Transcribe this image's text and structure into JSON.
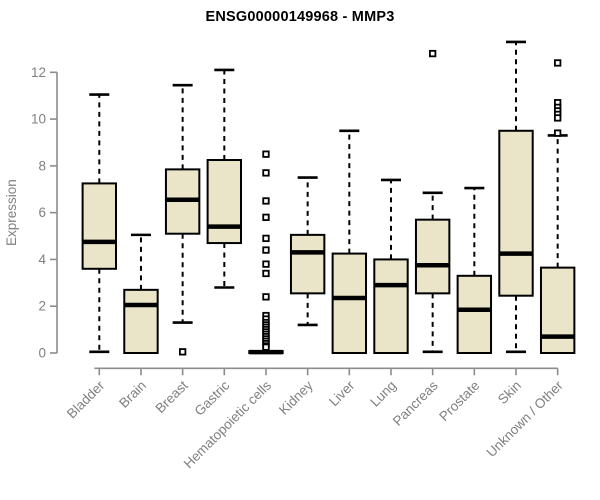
{
  "window": {
    "title": "ENSG00000149968 - MMP3"
  },
  "colors": {
    "background": "#FFFFFF",
    "box_fill": "#EAE5C9",
    "box_border": "#000000",
    "median": "#000000",
    "whisker": "#000000",
    "outlier_stroke": "#000000",
    "outlier_fill": "#FFFFFF",
    "axis": "#8C8C8C",
    "tick_label": "#808080",
    "title_text": "#000000"
  },
  "chart_data": {
    "type": "boxplot",
    "title": "ENSG00000149968 - MMP3",
    "xlabel": "",
    "ylabel": "Expression",
    "ylim": [
      0,
      13.5
    ],
    "yticks": [
      0,
      2,
      4,
      6,
      8,
      10,
      12
    ],
    "grid": false,
    "legend": false,
    "x_label_rotation_deg": 45,
    "categories": [
      "Bladder",
      "Brain",
      "Breast",
      "Gastric",
      "Hematopoietic cells",
      "Kidney",
      "Liver",
      "Lung",
      "Pancreas",
      "Prostate",
      "Skin",
      "Unknown / Other"
    ],
    "series": [
      {
        "name": "Bladder",
        "whisker_low": 0.05,
        "q1": 3.6,
        "median": 4.75,
        "q3": 7.25,
        "whisker_high": 11.05,
        "outliers": []
      },
      {
        "name": "Brain",
        "whisker_low": 0,
        "q1": 0,
        "median": 2.05,
        "q3": 2.7,
        "whisker_high": 5.05,
        "outliers": []
      },
      {
        "name": "Breast",
        "whisker_low": 1.3,
        "q1": 5.1,
        "median": 6.55,
        "q3": 7.85,
        "whisker_high": 11.45,
        "outliers": [
          0.05
        ]
      },
      {
        "name": "Gastric",
        "whisker_low": 2.8,
        "q1": 4.7,
        "median": 5.4,
        "q3": 8.25,
        "whisker_high": 12.1,
        "outliers": []
      },
      {
        "name": "Hematopoietic cells",
        "whisker_low": 0,
        "q1": 0,
        "median": 0.04,
        "q3": 0.08,
        "whisker_high": 0.08,
        "outliers": [
          8.5,
          7.7,
          6.5,
          5.8,
          4.9,
          4.4,
          3.8,
          3.4,
          2.4,
          1.6,
          1.45,
          1.3,
          1.2,
          1.1,
          1.0,
          0.9,
          0.8,
          0.7,
          0.6,
          0.5,
          0.4,
          0.3,
          0.25
        ]
      },
      {
        "name": "Kidney",
        "whisker_low": 1.2,
        "q1": 2.55,
        "median": 4.3,
        "q3": 5.05,
        "whisker_high": 7.5,
        "outliers": []
      },
      {
        "name": "Liver",
        "whisker_low": 0,
        "q1": 0,
        "median": 2.35,
        "q3": 4.25,
        "whisker_high": 9.5,
        "outliers": []
      },
      {
        "name": "Lung",
        "whisker_low": 0,
        "q1": 0,
        "median": 2.9,
        "q3": 4.0,
        "whisker_high": 7.4,
        "outliers": []
      },
      {
        "name": "Pancreas",
        "whisker_low": 0.05,
        "q1": 2.55,
        "median": 3.75,
        "q3": 5.7,
        "whisker_high": 6.85,
        "outliers": [
          12.8
        ]
      },
      {
        "name": "Prostate",
        "whisker_low": 0,
        "q1": 0,
        "median": 1.85,
        "q3": 3.3,
        "whisker_high": 7.05,
        "outliers": []
      },
      {
        "name": "Skin",
        "whisker_low": 0.05,
        "q1": 2.45,
        "median": 4.25,
        "q3": 9.5,
        "whisker_high": 13.3,
        "outliers": []
      },
      {
        "name": "Unknown / Other",
        "whisker_low": 0,
        "q1": 0,
        "median": 0.7,
        "q3": 3.65,
        "whisker_high": 9.3,
        "outliers": [
          12.4,
          10.7,
          10.5,
          10.35,
          10.2,
          10.05,
          9.4
        ]
      }
    ]
  }
}
